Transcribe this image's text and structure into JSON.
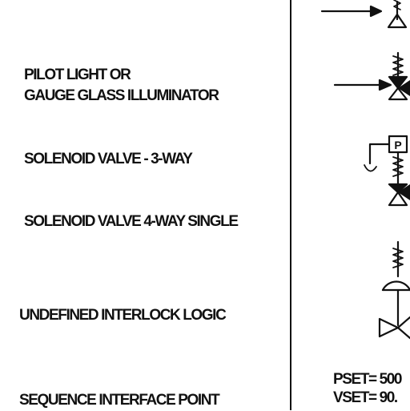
{
  "legend": {
    "rows": [
      {
        "label_line1": "PILOT LIGHT OR",
        "label_line2": "GAUGE GLASS ILLUMINATOR",
        "symbol": "pilot-valve-symbol"
      },
      {
        "label_line1": "SOLENOID VALVE - 3-WAY",
        "symbol": "solenoid-valve-3way-symbol"
      },
      {
        "label_line1": "SOLENOID VALVE 4-WAY SINGLE",
        "symbol": "solenoid-valve-4way-symbol"
      },
      {
        "label_line1": "UNDEFINED INTERLOCK LOGIC",
        "symbol": "diaphragm-valve-symbol"
      },
      {
        "label_line1": "SEQUENCE INTERFACE POINT"
      }
    ],
    "solenoid_letter": "P",
    "setpoints": {
      "pset": "PSET= 500",
      "vset": "VSET= 90."
    }
  },
  "colors": {
    "ink": "#111111",
    "background": "#ffffff"
  }
}
